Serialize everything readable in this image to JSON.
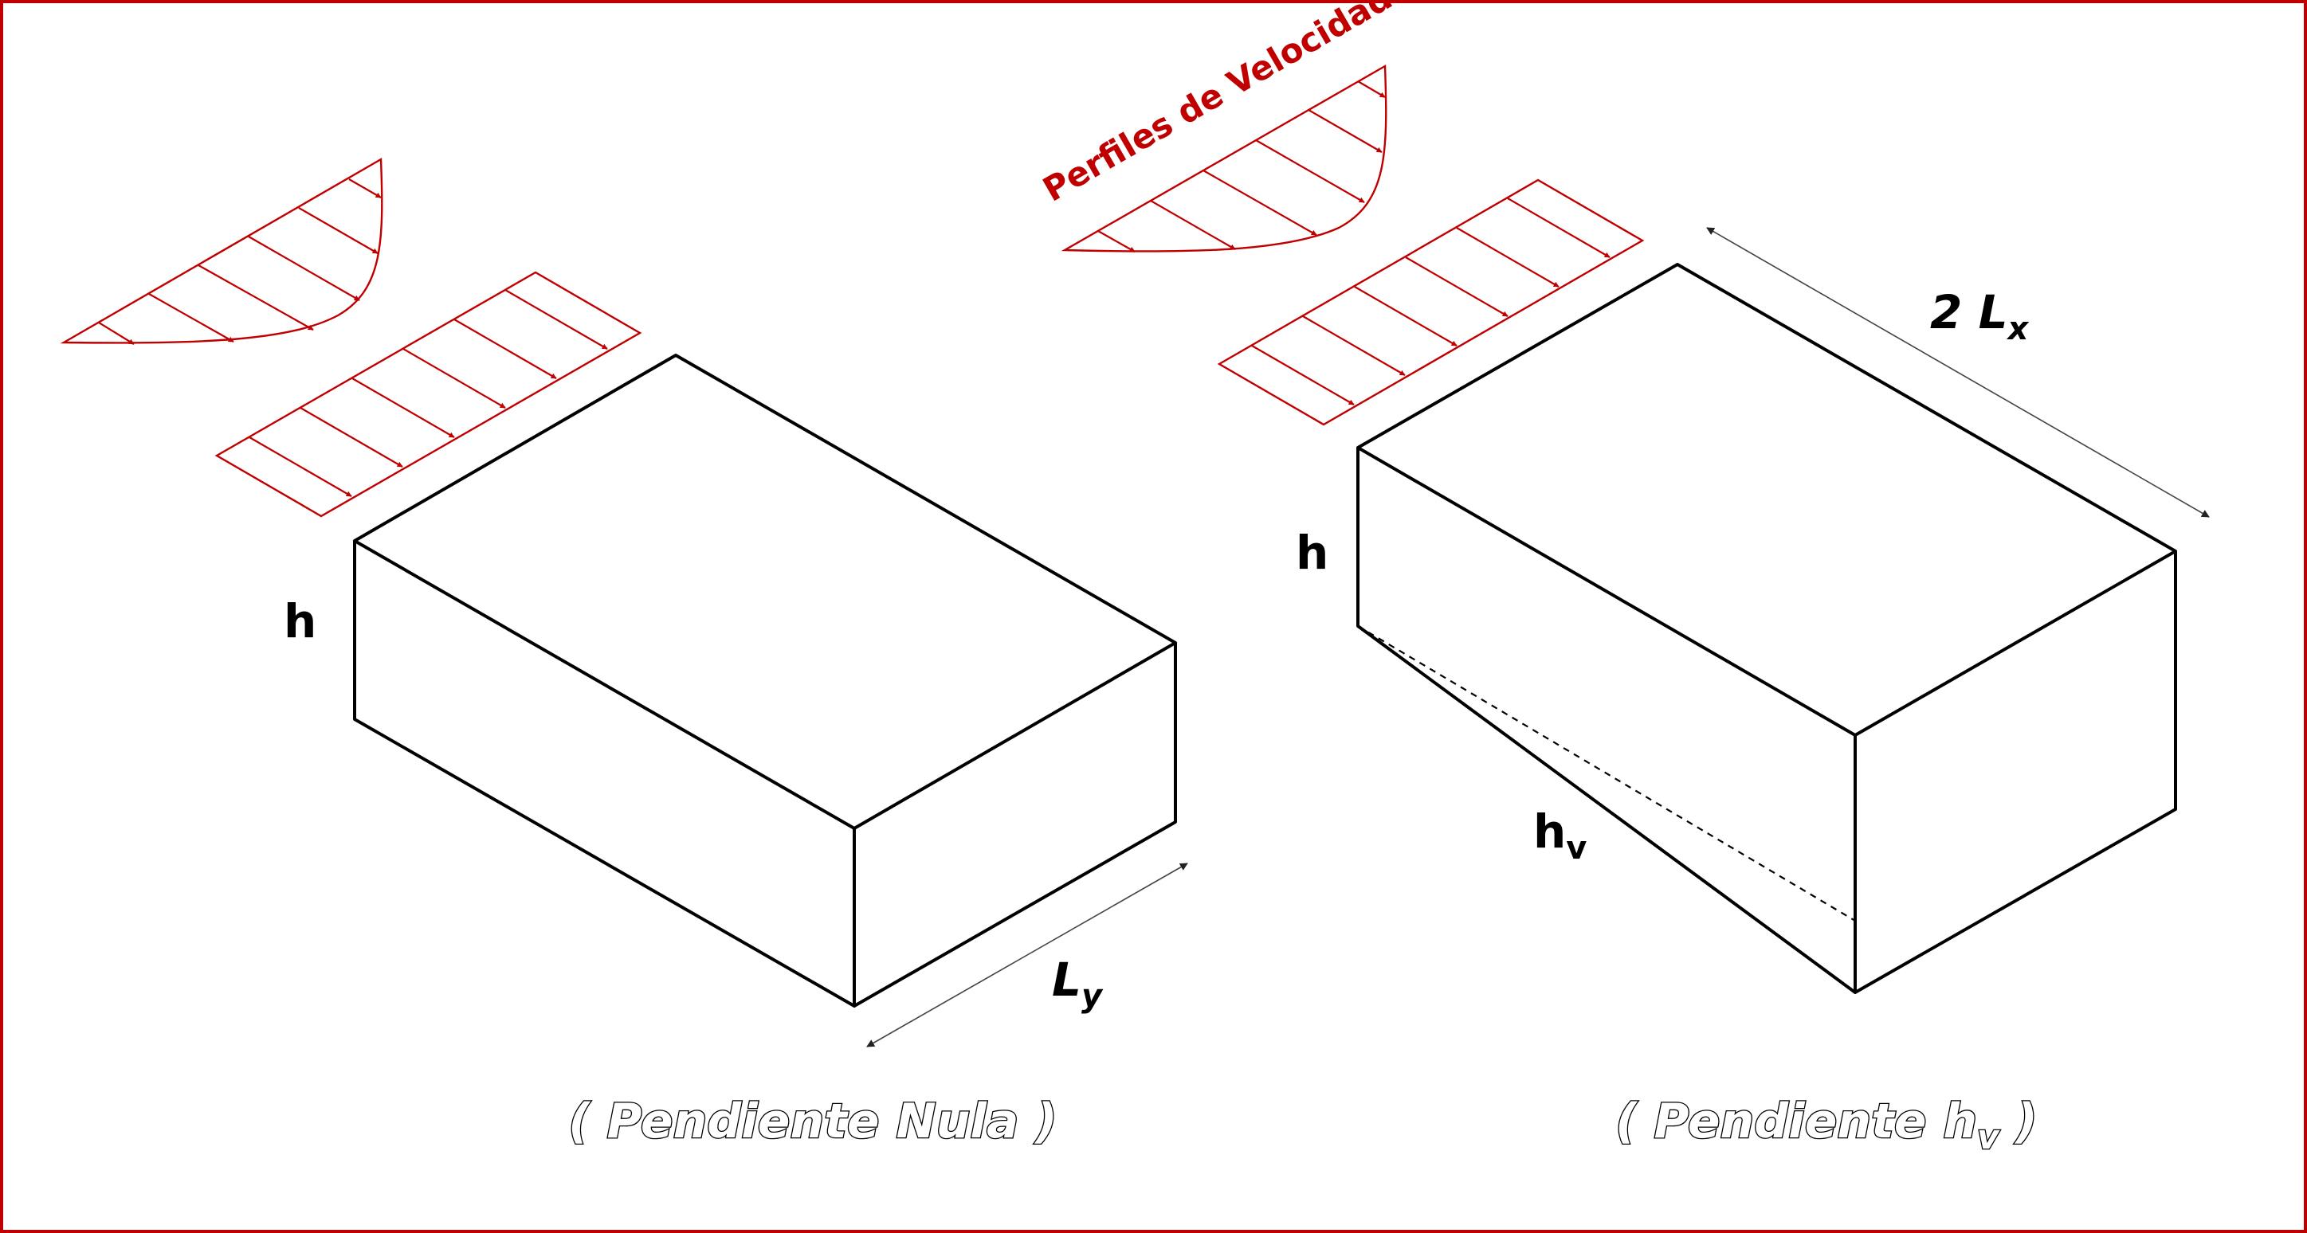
{
  "diagram": {
    "profile_label": "Perfiles de Velocidad",
    "left_figure": {
      "height_label": "h",
      "width_label_main": "L",
      "width_label_sub": "y",
      "caption": "( Pendiente Nula )"
    },
    "right_figure": {
      "height_label": "h",
      "slope_label_main": "h",
      "slope_label_sub": "v",
      "length_label_prefix": "2 ",
      "length_label_main": "L",
      "length_label_sub": "x",
      "caption_prefix": "( Pendiente ",
      "caption_main": "h",
      "caption_sub": "v",
      "caption_suffix": " )"
    },
    "colors": {
      "frame": "#c00000",
      "profiles": "#c00000",
      "edges": "#000000"
    }
  }
}
